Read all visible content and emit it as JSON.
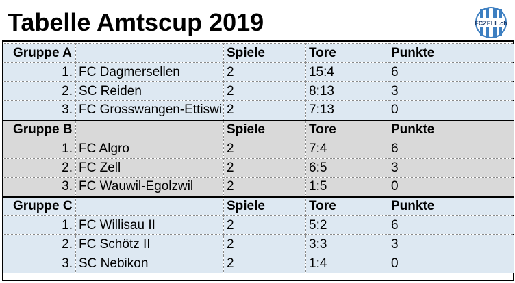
{
  "title": "Tabelle Amtscup 2019",
  "logo_text": "FCZELL.ch",
  "colors": {
    "blue_band": "#dde8f2",
    "grey_band": "#d9d9d9",
    "logo_blue": "#3d7fc1"
  },
  "headers": {
    "spiele": "Spiele",
    "tore": "Tore",
    "punkte": "Punkte"
  },
  "groups": [
    {
      "name": "Gruppe A",
      "rows": [
        {
          "rank": "1.",
          "team": "FC Dagmersellen",
          "spiele": "2",
          "tore": "15:4",
          "punkte": "6"
        },
        {
          "rank": "2.",
          "team": "SC Reiden",
          "spiele": "2",
          "tore": "8:13",
          "punkte": "3"
        },
        {
          "rank": "3.",
          "team": "FC Grosswangen-Ettiswil",
          "spiele": "2",
          "tore": "7:13",
          "punkte": "0"
        }
      ]
    },
    {
      "name": "Gruppe B",
      "rows": [
        {
          "rank": "1.",
          "team": "FC Algro",
          "spiele": "2",
          "tore": "7:4",
          "punkte": "6"
        },
        {
          "rank": "2.",
          "team": "FC Zell",
          "spiele": "2",
          "tore": "6:5",
          "punkte": "3"
        },
        {
          "rank": "3.",
          "team": "FC Wauwil-Egolzwil",
          "spiele": "2",
          "tore": "1:5",
          "punkte": "0"
        }
      ]
    },
    {
      "name": "Gruppe C",
      "rows": [
        {
          "rank": "1.",
          "team": "FC Willisau II",
          "spiele": "2",
          "tore": "5:2",
          "punkte": "6"
        },
        {
          "rank": "2.",
          "team": "FC Schötz II",
          "spiele": "2",
          "tore": "3:3",
          "punkte": "3"
        },
        {
          "rank": "3.",
          "team": "SC Nebikon",
          "spiele": "2",
          "tore": "1:4",
          "punkte": "0"
        }
      ]
    }
  ]
}
